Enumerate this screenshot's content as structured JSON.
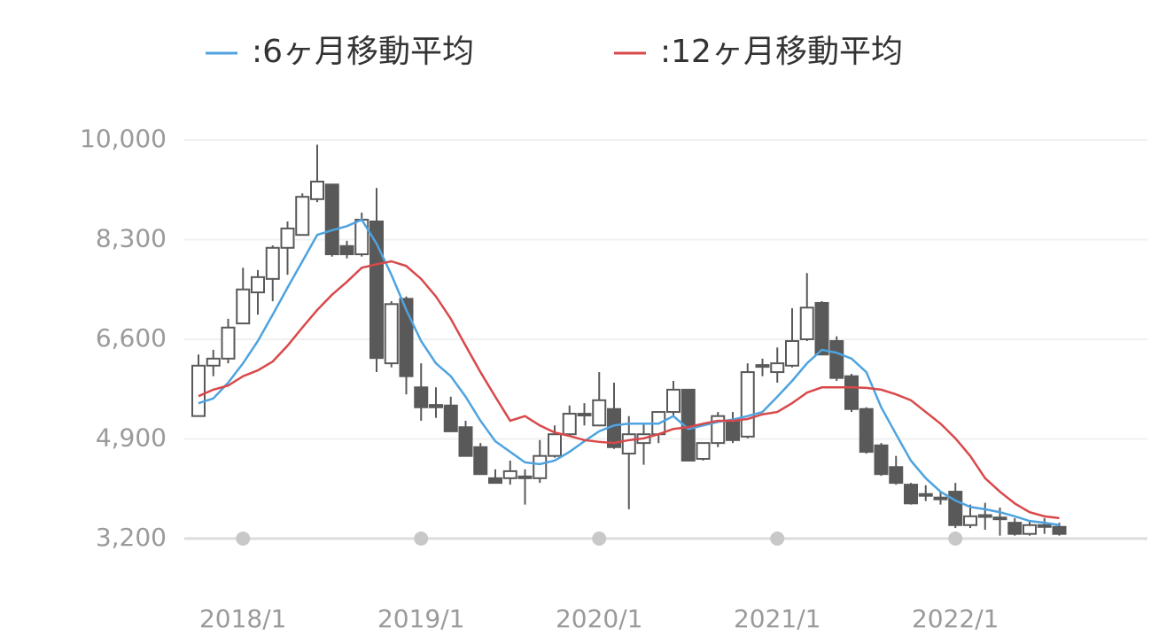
{
  "chart_data": {
    "type": "candlestick",
    "categories": [
      null,
      null,
      null,
      "2018/1",
      null,
      null,
      null,
      null,
      null,
      null,
      null,
      null,
      null,
      null,
      null,
      "2019/1",
      null,
      null,
      null,
      null,
      null,
      null,
      null,
      null,
      null,
      null,
      null,
      "2020/1",
      null,
      null,
      null,
      null,
      null,
      null,
      null,
      null,
      null,
      null,
      null,
      "2021/1",
      null,
      null,
      null,
      null,
      null,
      null,
      null,
      null,
      null,
      null,
      null,
      "2022/1",
      null,
      null,
      null,
      null,
      null,
      null,
      null
    ],
    "open": [
      5290,
      6150,
      6270,
      6870,
      7400,
      7630,
      8160,
      8380,
      8990,
      9240,
      8190,
      8050,
      8610,
      6190,
      7290,
      5780,
      5480,
      5470,
      5100,
      4760,
      4230,
      4230,
      4260,
      4230,
      4610,
      4980,
      5310,
      5130,
      5410,
      4650,
      4830,
      4980,
      5360,
      5740,
      4560,
      4830,
      5210,
      4940,
      6130,
      6040,
      6150,
      6600,
      7220,
      6570,
      5970,
      5410,
      4790,
      4420,
      4120,
      3960,
      3900,
      4000,
      3430,
      3600,
      3560,
      3470,
      3280,
      3420,
      3400
    ],
    "high": [
      6340,
      6420,
      6950,
      7820,
      7780,
      8200,
      8610,
      9090,
      9920,
      9240,
      8280,
      8760,
      9180,
      7250,
      7330,
      6190,
      5780,
      5620,
      5210,
      4830,
      4380,
      4530,
      4380,
      4880,
      5130,
      5470,
      5510,
      6040,
      5860,
      5290,
      5180,
      5360,
      5890,
      5740,
      4830,
      5360,
      5360,
      6190,
      6270,
      6460,
      7130,
      7730,
      7250,
      6650,
      6010,
      5440,
      4830,
      4610,
      4150,
      4110,
      4000,
      4150,
      3780,
      3810,
      3730,
      3550,
      3500,
      3550,
      3470
    ],
    "low": [
      5290,
      5970,
      6190,
      6870,
      7020,
      7250,
      7700,
      8380,
      8940,
      8010,
      7980,
      8010,
      6040,
      6120,
      5660,
      5210,
      5260,
      5030,
      4610,
      4300,
      4150,
      4120,
      3780,
      4150,
      4580,
      4940,
      5130,
      5130,
      4730,
      3700,
      4460,
      4830,
      5290,
      4530,
      4530,
      4760,
      4830,
      4910,
      5970,
      5860,
      6120,
      6570,
      6340,
      5890,
      5360,
      4650,
      4270,
      4120,
      3780,
      3840,
      3780,
      3380,
      3380,
      3350,
      3250,
      3250,
      3250,
      3280,
      3250
    ],
    "close": [
      6150,
      6270,
      6800,
      7450,
      7660,
      8160,
      8490,
      9030,
      9290,
      8050,
      8050,
      8640,
      6280,
      7200,
      5970,
      5440,
      5440,
      5030,
      4610,
      4300,
      4150,
      4350,
      4240,
      4610,
      4980,
      5330,
      5330,
      5560,
      4760,
      4980,
      4980,
      5360,
      5740,
      4530,
      4830,
      5290,
      4880,
      6040,
      6160,
      6190,
      6570,
      7140,
      6340,
      5940,
      5410,
      4680,
      4300,
      4150,
      3800,
      3940,
      3880,
      3430,
      3580,
      3590,
      3540,
      3280,
      3430,
      3430,
      3280
    ],
    "color_up": "#ffffff",
    "color_down": "#595959",
    "series": [
      {
        "name": ":6ヶ月移動平均",
        "color": "#4ea3e0",
        "values": [
          5510,
          5590,
          5860,
          6190,
          6570,
          7020,
          7480,
          7930,
          8380,
          8460,
          8530,
          8640,
          8230,
          7700,
          7100,
          6570,
          6190,
          5970,
          5620,
          5210,
          4860,
          4680,
          4500,
          4470,
          4530,
          4680,
          4860,
          5030,
          5130,
          5160,
          5160,
          5160,
          5290,
          5070,
          5130,
          5190,
          5230,
          5290,
          5360,
          5620,
          5890,
          6190,
          6420,
          6370,
          6270,
          6040,
          5440,
          4980,
          4530,
          4230,
          4000,
          3850,
          3740,
          3700,
          3650,
          3580,
          3500,
          3470,
          3430
        ]
      },
      {
        "name": ":12ヶ月移動平均",
        "color": "#d9484a",
        "values": [
          5630,
          5740,
          5810,
          5970,
          6070,
          6220,
          6490,
          6800,
          7100,
          7360,
          7580,
          7820,
          7880,
          7930,
          7850,
          7630,
          7330,
          6950,
          6490,
          6040,
          5620,
          5210,
          5290,
          5130,
          5010,
          4950,
          4880,
          4850,
          4830,
          4880,
          4910,
          4980,
          5070,
          5100,
          5160,
          5210,
          5210,
          5240,
          5320,
          5360,
          5510,
          5690,
          5780,
          5780,
          5780,
          5770,
          5740,
          5660,
          5560,
          5360,
          5160,
          4910,
          4610,
          4230,
          4000,
          3800,
          3650,
          3580,
          3550
        ]
      }
    ],
    "ylim": [
      3200,
      10000
    ],
    "yticks": [
      {
        "value": 3200,
        "label": "3,200"
      },
      {
        "value": 4900,
        "label": "4,900"
      },
      {
        "value": 6600,
        "label": "6,600"
      },
      {
        "value": 8300,
        "label": "8,300"
      },
      {
        "value": 10000,
        "label": "10,000"
      }
    ],
    "grid": true
  }
}
